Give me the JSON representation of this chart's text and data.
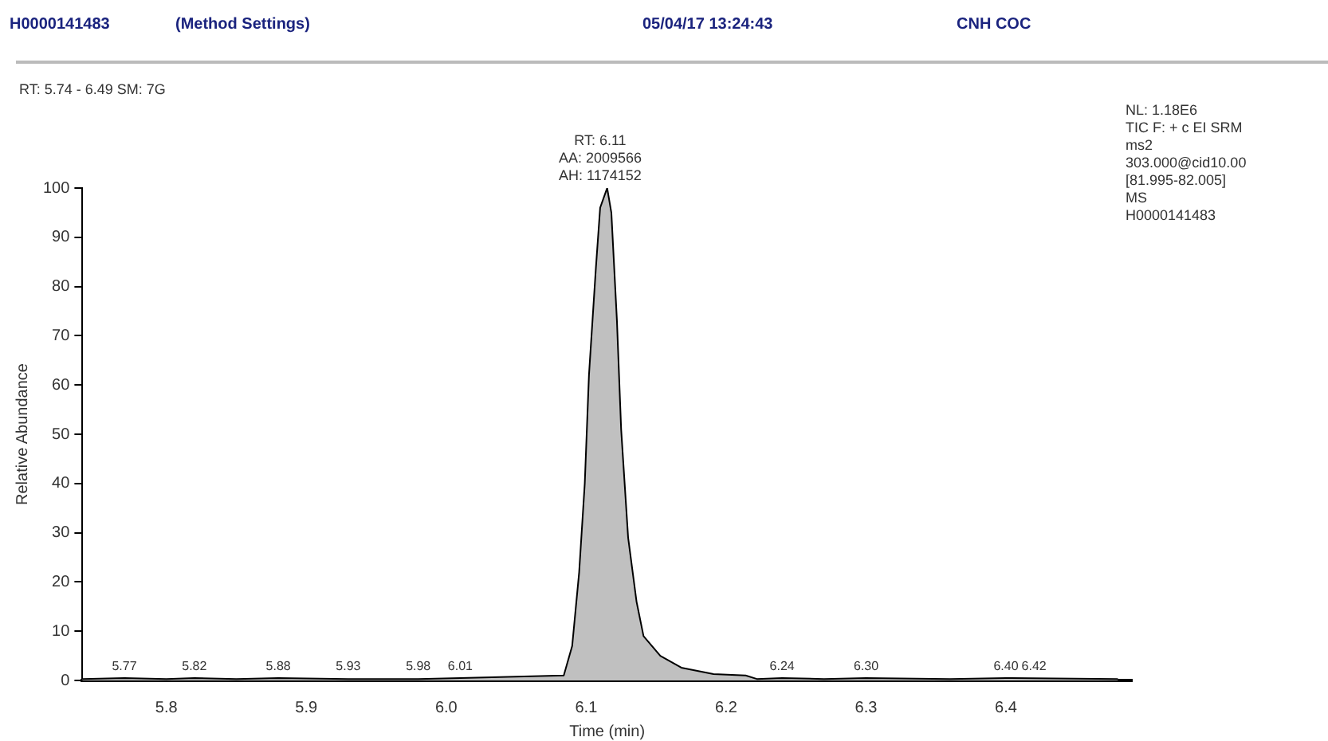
{
  "chart_data": {
    "type": "area",
    "title": "H0000141483",
    "subtitle": "(Method Settings)",
    "xlabel": "Time (min)",
    "ylabel": "Relative Abundance",
    "annotations": [
      "05/04/17 13:24:43",
      "CNH COC",
      "RT: 5.74 - 6.49   SM: 7G",
      "NL: 1.18E6\nTIC F: + c EI SRM\nms2\n303.000@cid10.00\n[81.995-82.005]\nMS\nH0000141483",
      {
        "text": "RT: 6.11\nAA: 2009566\nAH: 1174152",
        "x": 6.11,
        "y": 100
      },
      {
        "text": "5.77",
        "x": 5.77,
        "y": 0.5
      },
      {
        "text": "5.82",
        "x": 5.82,
        "y": 0.5
      },
      {
        "text": "5.88",
        "x": 5.88,
        "y": 0.5
      },
      {
        "text": "5.93",
        "x": 5.93,
        "y": 0.5
      },
      {
        "text": "5.98",
        "x": 5.98,
        "y": 0.5
      },
      {
        "text": "6.01",
        "x": 6.01,
        "y": 0.5
      },
      {
        "text": "6.24",
        "x": 6.24,
        "y": 0.5
      },
      {
        "text": "6.30",
        "x": 6.3,
        "y": 0.5
      },
      {
        "text": "6.40",
        "x": 6.4,
        "y": 0.5
      },
      {
        "text": "6.42",
        "x": 6.42,
        "y": 0.5
      }
    ],
    "series": [
      {
        "color": "#000000",
        "values": [
          0.3,
          0.5,
          0.3,
          0.5,
          0.3,
          0.5,
          0.3,
          0.3,
          0.5,
          1,
          7,
          22,
          40,
          62,
          84,
          96,
          100,
          95,
          73,
          51,
          29,
          16,
          9,
          5,
          2.6,
          1.3,
          1,
          0.3,
          0.5,
          0.3,
          0.5,
          0.3,
          0.5,
          0.3
        ],
        "x": [
          5.74,
          5.77,
          5.8,
          5.82,
          5.85,
          5.88,
          5.93,
          5.98,
          6.01,
          6.084,
          6.09,
          6.095,
          6.099,
          6.102,
          6.107,
          6.11,
          6.115,
          6.118,
          6.122,
          6.125,
          6.13,
          6.136,
          6.141,
          6.153,
          6.168,
          6.191,
          6.214,
          6.222,
          6.24,
          6.27,
          6.3,
          6.36,
          6.4,
          6.48
        ]
      }
    ],
    "xlim": [
      5.74,
      6.49
    ],
    "xticks": [
      5.8,
      5.9,
      {
        "value": 6,
        "label": "6.0"
      },
      6.1,
      6.2,
      6.3,
      6.4
    ],
    "ylim": [
      0,
      100
    ],
    "yticks": [
      0,
      10,
      20,
      30,
      40,
      50,
      60,
      70,
      80,
      90,
      100
    ],
    "grid": false,
    "legend": false,
    "marker": "none",
    "line_style": "solid"
  }
}
